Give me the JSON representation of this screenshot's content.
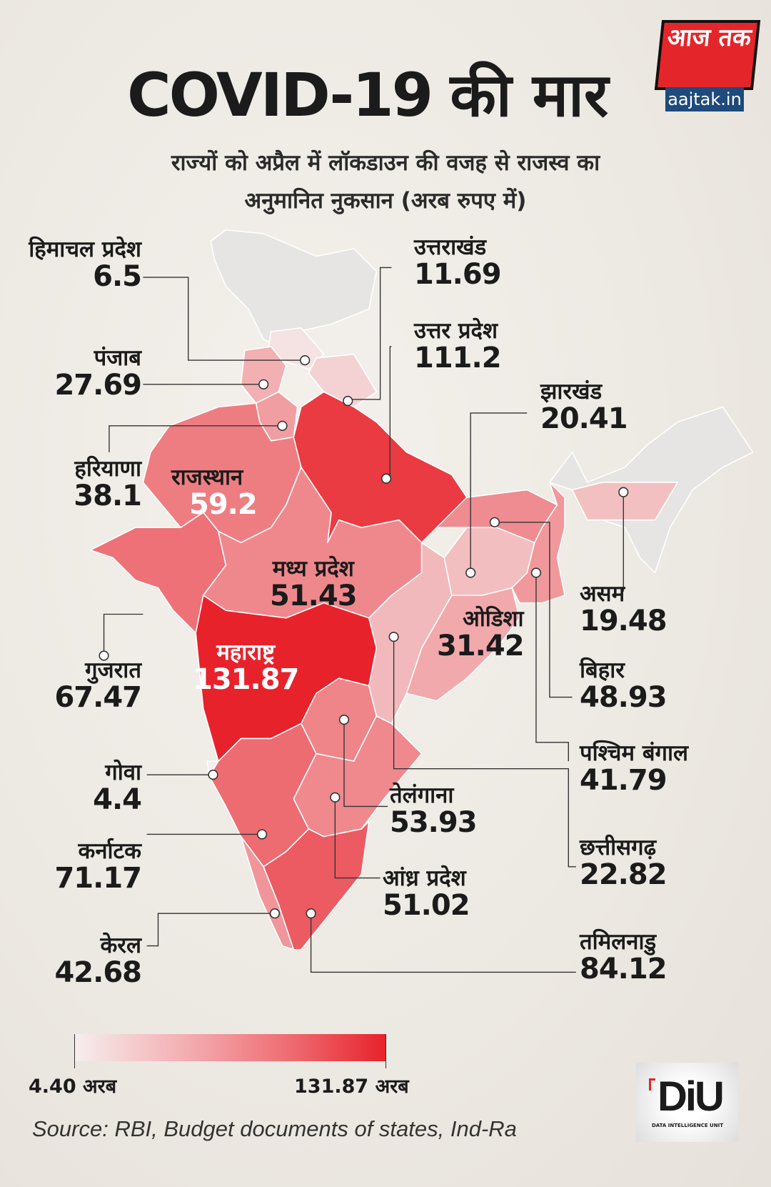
{
  "header": {
    "title_en": "COVID-19",
    "title_hi": "की मार",
    "subtitle_line1": "राज्यों को अप्रैल में लॉकडाउन की वजह से राजस्व का",
    "subtitle_line2": "अनुमानित नुकसान (अरब रुपए में)"
  },
  "logo": {
    "top": "आज तक",
    "bottom": "aajtak.in",
    "colors": {
      "red": "#e4262b",
      "blue": "#1e4a7c"
    }
  },
  "chart_data": {
    "type": "choropleth",
    "unit": "अरब रुपए",
    "color_scale": {
      "min": 4.4,
      "max": 131.87,
      "min_color": "#f6eeee",
      "max_color": "#e8222b",
      "no_data_color": "#e6e5e3"
    },
    "states": [
      {
        "key": "hp",
        "name": "हिमाचल प्रदेश",
        "value": "6.5"
      },
      {
        "key": "pb",
        "name": "पंजाब",
        "value": "27.69"
      },
      {
        "key": "hr",
        "name": "हरियाणा",
        "value": "38.1"
      },
      {
        "key": "rj",
        "name": "राजस्थान",
        "value": "59.2"
      },
      {
        "key": "uk",
        "name": "उत्तराखंड",
        "value": "11.69"
      },
      {
        "key": "up",
        "name": "उत्तर प्रदेश",
        "value": "111.2"
      },
      {
        "key": "jh",
        "name": "झारखंड",
        "value": "20.41"
      },
      {
        "key": "mp",
        "name": "मध्य प्रदेश",
        "value": "51.43"
      },
      {
        "key": "od",
        "name": "ओडिशा",
        "value": "31.42"
      },
      {
        "key": "as",
        "name": "असम",
        "value": "19.48"
      },
      {
        "key": "br",
        "name": "बिहार",
        "value": "48.93"
      },
      {
        "key": "wb",
        "name": "पश्चिम बंगाल",
        "value": "41.79"
      },
      {
        "key": "cg",
        "name": "छत्तीसगढ़",
        "value": "22.82"
      },
      {
        "key": "tn",
        "name": "तमिलनाडु",
        "value": "84.12"
      },
      {
        "key": "mh",
        "name": "महाराष्ट्र",
        "value": "131.87"
      },
      {
        "key": "gj",
        "name": "गुजरात",
        "value": "67.47"
      },
      {
        "key": "ga",
        "name": "गोवा",
        "value": "4.4"
      },
      {
        "key": "ka",
        "name": "कर्नाटक",
        "value": "71.17"
      },
      {
        "key": "kl",
        "name": "केरल",
        "value": "42.68"
      },
      {
        "key": "tg",
        "name": "तेलंगाना",
        "value": "53.93"
      },
      {
        "key": "ap",
        "name": "आंध्र प्रदेश",
        "value": "51.02"
      }
    ]
  },
  "legend": {
    "min_label": "4.40 अरब",
    "max_label": "131.87 अरब"
  },
  "source": "Source: RBI, Budget documents of states, Ind-Ra",
  "diu": {
    "mark": "DiU",
    "caption": "DATA INTELLIGENCE UNIT"
  }
}
